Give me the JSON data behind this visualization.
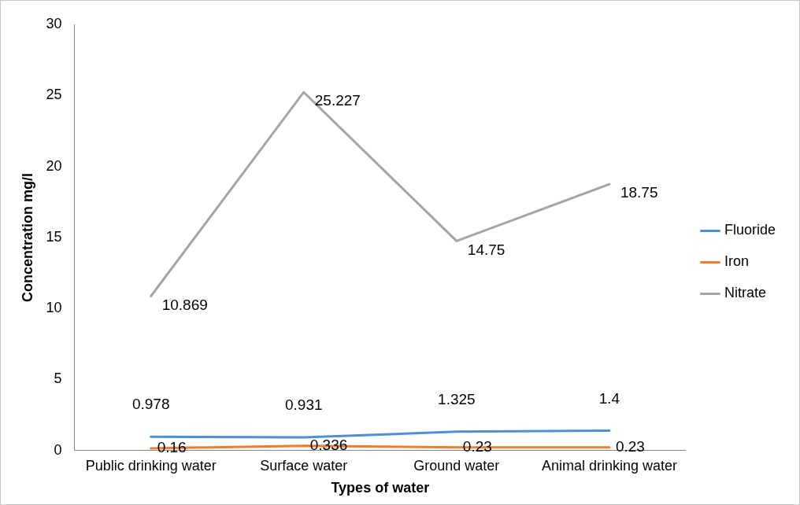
{
  "chart_data": {
    "type": "line",
    "xlabel": "Types of water",
    "ylabel": "Concentration mg/l",
    "categories": [
      "Public drinking water",
      "Surface water",
      "Ground water",
      "Animal drinking water"
    ],
    "series": [
      {
        "name": "Fluoride",
        "color": "#4f8fd8",
        "values": [
          0.978,
          0.931,
          1.325,
          1.4
        ]
      },
      {
        "name": "Iron",
        "color": "#ed7d31",
        "values": [
          0.16,
          0.336,
          0.23,
          0.23
        ]
      },
      {
        "name": "Nitrate",
        "color": "#a5a5a5",
        "values": [
          10.869,
          25.227,
          14.75,
          18.75
        ]
      }
    ],
    "ylim": [
      0,
      30
    ],
    "yticks": [
      0,
      5,
      10,
      15,
      20,
      25,
      30
    ],
    "grid": false,
    "legend": "right",
    "data_labels": true,
    "marker": "none",
    "line_style": "solid"
  }
}
